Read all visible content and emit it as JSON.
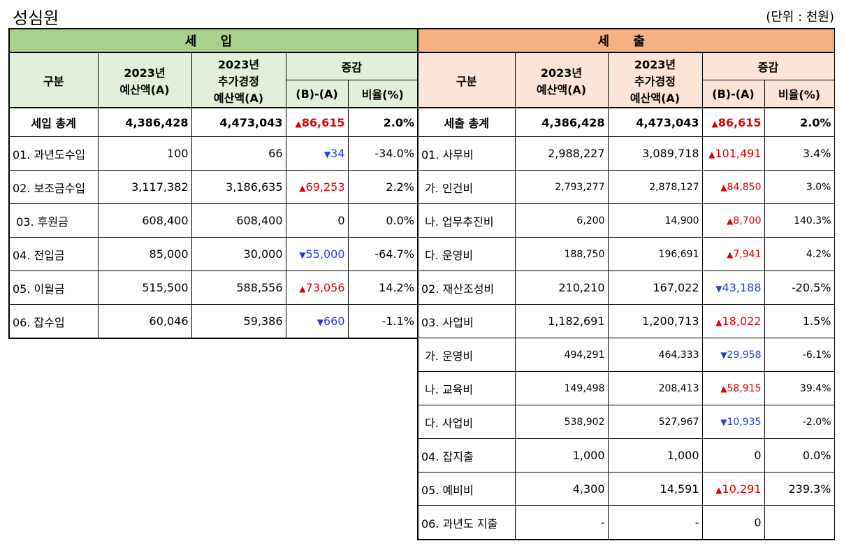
{
  "title": "성심원",
  "unit": "(단위 : 천원)",
  "income": {
    "header": "세  입",
    "cols": {
      "category": "구분",
      "budget": [
        "2023년",
        "예산액(A)"
      ],
      "supp": [
        "2023년",
        "추가경정",
        "예산액(A)"
      ],
      "change": "증감",
      "diff": "(B)-(A)",
      "ratio": "비율(%)"
    },
    "total": {
      "label": "세입 총계",
      "budget": "4,386,428",
      "supp": "4,473,043",
      "dir": "up",
      "diff": "86,615",
      "ratio": "2.0%"
    },
    "rows": [
      {
        "label": "01. 과년도수입",
        "budget": "100",
        "supp": "66",
        "dir": "down",
        "diff": "34",
        "ratio": "-34.0%"
      },
      {
        "label": "02. 보조금수입",
        "budget": "3,117,382",
        "supp": "3,186,635",
        "dir": "up",
        "diff": "69,253",
        "ratio": "2.2%"
      },
      {
        "label": " 03. 후원금",
        "budget": "608,400",
        "supp": "608,400",
        "dir": "none",
        "diff": "0",
        "ratio": "0.0%"
      },
      {
        "label": "04. 전입금",
        "budget": "85,000",
        "supp": "30,000",
        "dir": "down",
        "diff": "55,000",
        "ratio": "-64.7%"
      },
      {
        "label": "05. 이월금",
        "budget": "515,500",
        "supp": "588,556",
        "dir": "up",
        "diff": "73,056",
        "ratio": "14.2%"
      },
      {
        "label": "06. 잡수입",
        "budget": "60,046",
        "supp": "59,386",
        "dir": "down",
        "diff": "660",
        "ratio": "-1.1%"
      }
    ]
  },
  "expense": {
    "header": "세  출",
    "cols": {
      "category": "구분",
      "budget": [
        "2023년",
        "예산액(A)"
      ],
      "supp": [
        "2023년",
        "추가경정",
        "예산액(A)"
      ],
      "change": "증감",
      "diff": "(B)-(A)",
      "ratio": "비율(%)"
    },
    "total": {
      "label": "세출 총계",
      "budget": "4,386,428",
      "supp": "4,473,043",
      "dir": "up",
      "diff": "86,615",
      "ratio": "2.0%"
    },
    "rows": [
      {
        "label": "01. 사무비",
        "budget": "2,988,227",
        "supp": "3,089,718",
        "dir": "up",
        "diff": "101,491",
        "ratio": "3.4%",
        "small": false
      },
      {
        "label": " 가. 인건비",
        "budget": "2,793,277",
        "supp": "2,878,127",
        "dir": "up",
        "diff": "84,850",
        "ratio": "3.0%",
        "small": true
      },
      {
        "label": " 나. 업무추진비",
        "budget": "6,200",
        "supp": "14,900",
        "dir": "up",
        "diff": "8,700",
        "ratio": "140.3%",
        "small": true
      },
      {
        "label": " 다. 운영비",
        "budget": "188,750",
        "supp": "196,691",
        "dir": "up",
        "diff": "7,941",
        "ratio": "4.2%",
        "small": true
      },
      {
        "label": "02. 재산조성비",
        "budget": "210,210",
        "supp": "167,022",
        "dir": "down",
        "diff": "43,188",
        "ratio": "-20.5%",
        "small": false
      },
      {
        "label": "03. 사업비",
        "budget": "1,182,691",
        "supp": "1,200,713",
        "dir": "up",
        "diff": "18,022",
        "ratio": "1.5%",
        "small": false
      },
      {
        "label": " 가. 운영비",
        "budget": "494,291",
        "supp": "464,333",
        "dir": "down",
        "diff": "29,958",
        "ratio": "-6.1%",
        "small": true
      },
      {
        "label": " 나. 교육비",
        "budget": "149,498",
        "supp": "208,413",
        "dir": "up",
        "diff": "58,915",
        "ratio": "39.4%",
        "small": true
      },
      {
        "label": " 다. 사업비",
        "budget": "538,902",
        "supp": "527,967",
        "dir": "down",
        "diff": "10,935",
        "ratio": "-2.0%",
        "small": true
      },
      {
        "label": "04. 잡지출",
        "budget": "1,000",
        "supp": "1,000",
        "dir": "none",
        "diff": "0",
        "ratio": "0.0%",
        "small": false
      },
      {
        "label": "05. 예비비",
        "budget": "4,300",
        "supp": "14,591",
        "dir": "up",
        "diff": "10,291",
        "ratio": "239.3%",
        "small": false
      },
      {
        "label": "06. 과년도 지출",
        "budget": "-",
        "supp": "-",
        "dir": "none",
        "diff": "0",
        "ratio": "",
        "small": false
      }
    ]
  }
}
